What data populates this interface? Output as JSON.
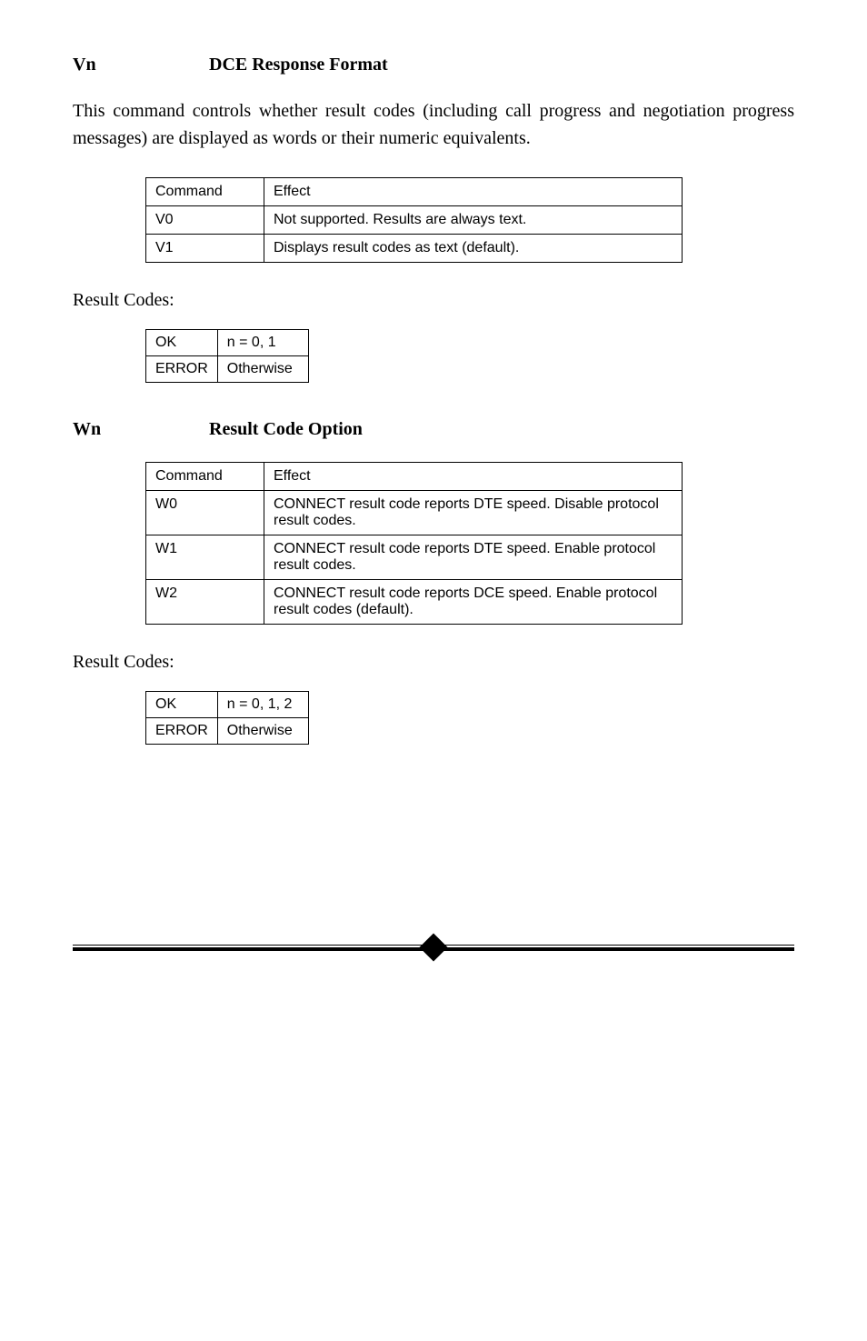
{
  "sections": [
    {
      "cmd": "Vn",
      "title": "DCE Response Format",
      "description": "This command controls whether result codes (including call progress and negotiation progress messages) are displayed as words or their numeric equivalents.",
      "table": {
        "headers": [
          "Command",
          "Effect"
        ],
        "rows": [
          [
            "V0",
            "Not supported. Results are always text."
          ],
          [
            "V1",
            "Displays result codes as text (default)."
          ]
        ]
      },
      "result_label": "Result Codes:",
      "result_table": {
        "rows": [
          [
            "OK",
            "n = 0, 1"
          ],
          [
            "ERROR",
            "Otherwise"
          ]
        ]
      }
    },
    {
      "cmd": "Wn",
      "title": "Result Code Option",
      "description": "",
      "table": {
        "headers": [
          "Command",
          "Effect"
        ],
        "rows": [
          [
            "W0",
            "CONNECT result code reports DTE speed. Disable protocol result codes."
          ],
          [
            "W1",
            "CONNECT result code reports DTE speed. Enable protocol result codes."
          ],
          [
            "W2",
            "CONNECT result code reports DCE speed. Enable protocol result codes (default)."
          ]
        ]
      },
      "result_label": "Result Codes:",
      "result_table": {
        "rows": [
          [
            "OK",
            "n = 0, 1, 2"
          ],
          [
            "ERROR",
            "Otherwise"
          ]
        ]
      }
    }
  ]
}
